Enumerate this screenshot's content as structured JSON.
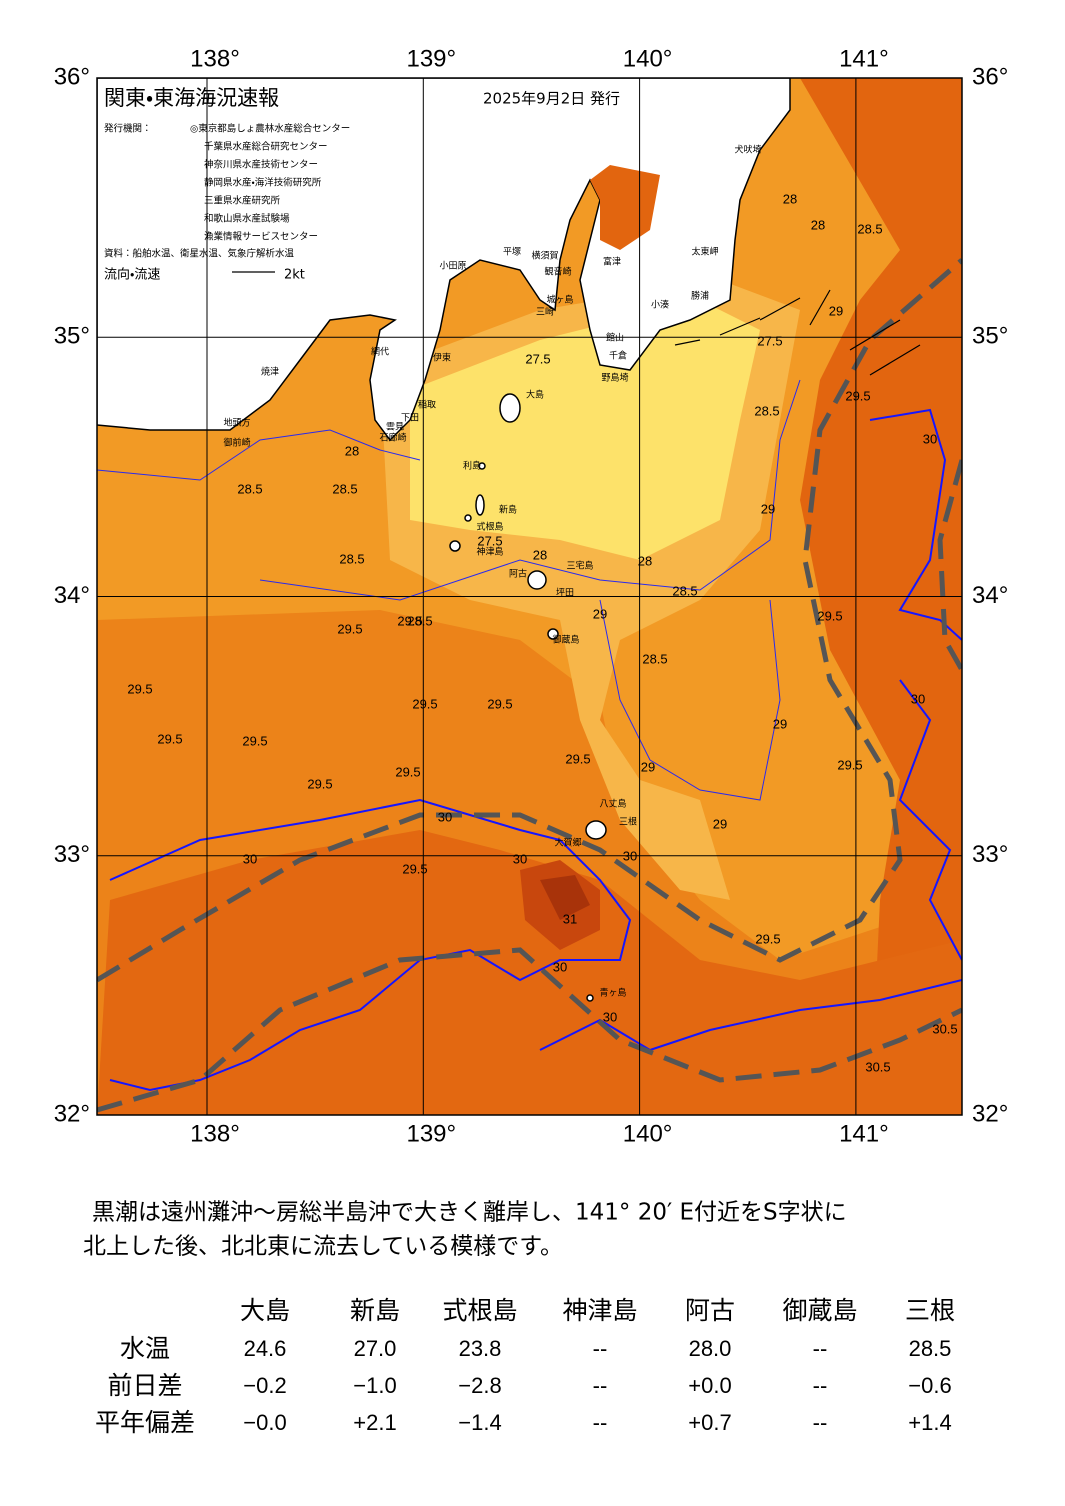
{
  "header": {
    "title": "関東・東海海況速報",
    "date": "2025年9月2日 発行",
    "issuer_label": "発行機関：",
    "issuers": [
      "◎東京都島しょ農林水産総合センター",
      "千葉県水産総合研究センター",
      "神奈川県水産技術センター",
      "静岡県水産・海洋技術研究所",
      "三重県水産研究所",
      "和歌山県水産試験場",
      "漁業情報サービスセンター"
    ],
    "sources": "資料：船舶水温、衛星水温、気象庁解析水温",
    "legend_label": "流向・流速",
    "legend_scale": "2kt"
  },
  "map": {
    "lon_ticks": [
      {
        "value": 138,
        "label": "138°"
      },
      {
        "value": 139,
        "label": "139°"
      },
      {
        "value": 140,
        "label": "140°"
      },
      {
        "value": 141,
        "label": "141°"
      }
    ],
    "lat_ticks": [
      {
        "value": 36,
        "label": "36°"
      },
      {
        "value": 35,
        "label": "35°"
      },
      {
        "value": 34,
        "label": "34°"
      },
      {
        "value": 33,
        "label": "33°"
      },
      {
        "value": 32,
        "label": "32°"
      }
    ],
    "places": [
      "犬吠埼",
      "太東岬",
      "勝浦",
      "小湊",
      "館山",
      "千倉",
      "野島埼",
      "富津",
      "観音崎",
      "横須賀",
      "平塚",
      "小田原",
      "城ヶ島",
      "三崎",
      "網代",
      "伊東",
      "稲取",
      "下田",
      "雲見",
      "石廊崎",
      "御前崎",
      "地頭方",
      "焼津",
      "大島",
      "利島",
      "新島",
      "式根島",
      "神津島",
      "三宅島",
      "阿古",
      "坪田",
      "御蔵島",
      "八丈島",
      "三根",
      "大賀郷",
      "青ヶ島"
    ],
    "contour_labels": [
      "28",
      "28",
      "28.5",
      "29",
      "27.5",
      "27.5",
      "28.5",
      "29.5",
      "28",
      "28.5",
      "29",
      "28.5",
      "27.5",
      "28.5",
      "28",
      "28",
      "28.5",
      "29",
      "29.5",
      "28.5",
      "28.5",
      "29",
      "29.5",
      "29.5",
      "29.5",
      "29.5",
      "29.5",
      "29.5",
      "29.5",
      "29",
      "29",
      "29.5",
      "30",
      "30",
      "30",
      "29.5",
      "29.5",
      "29.5",
      "29.5",
      "30",
      "31",
      "30",
      "30",
      "30",
      "30",
      "30.5",
      "30.5",
      "29.5"
    ]
  },
  "description": [
    "黒潮は遠州灘沖～房総半島沖で大きく離岸し、141° 20′ E付近をS字状に",
    "北上した後、北北東に流去している模様です。"
  ],
  "table": {
    "columns": [
      "大島",
      "新島",
      "式根島",
      "神津島",
      "阿古",
      "御蔵島",
      "三根"
    ],
    "rows": [
      {
        "label": "水温",
        "cells": [
          "24.6",
          "27.0",
          "23.8",
          "--",
          "28.0",
          "--",
          "28.5"
        ]
      },
      {
        "label": "前日差",
        "cells": [
          "−0.2",
          "−1.0",
          "−2.8",
          "--",
          "+0.0",
          "--",
          "−0.6"
        ]
      },
      {
        "label": "平年偏差",
        "cells": [
          "−0.0",
          "+2.1",
          "−1.4",
          "--",
          "+0.7",
          "--",
          "+1.4"
        ]
      }
    ]
  }
}
